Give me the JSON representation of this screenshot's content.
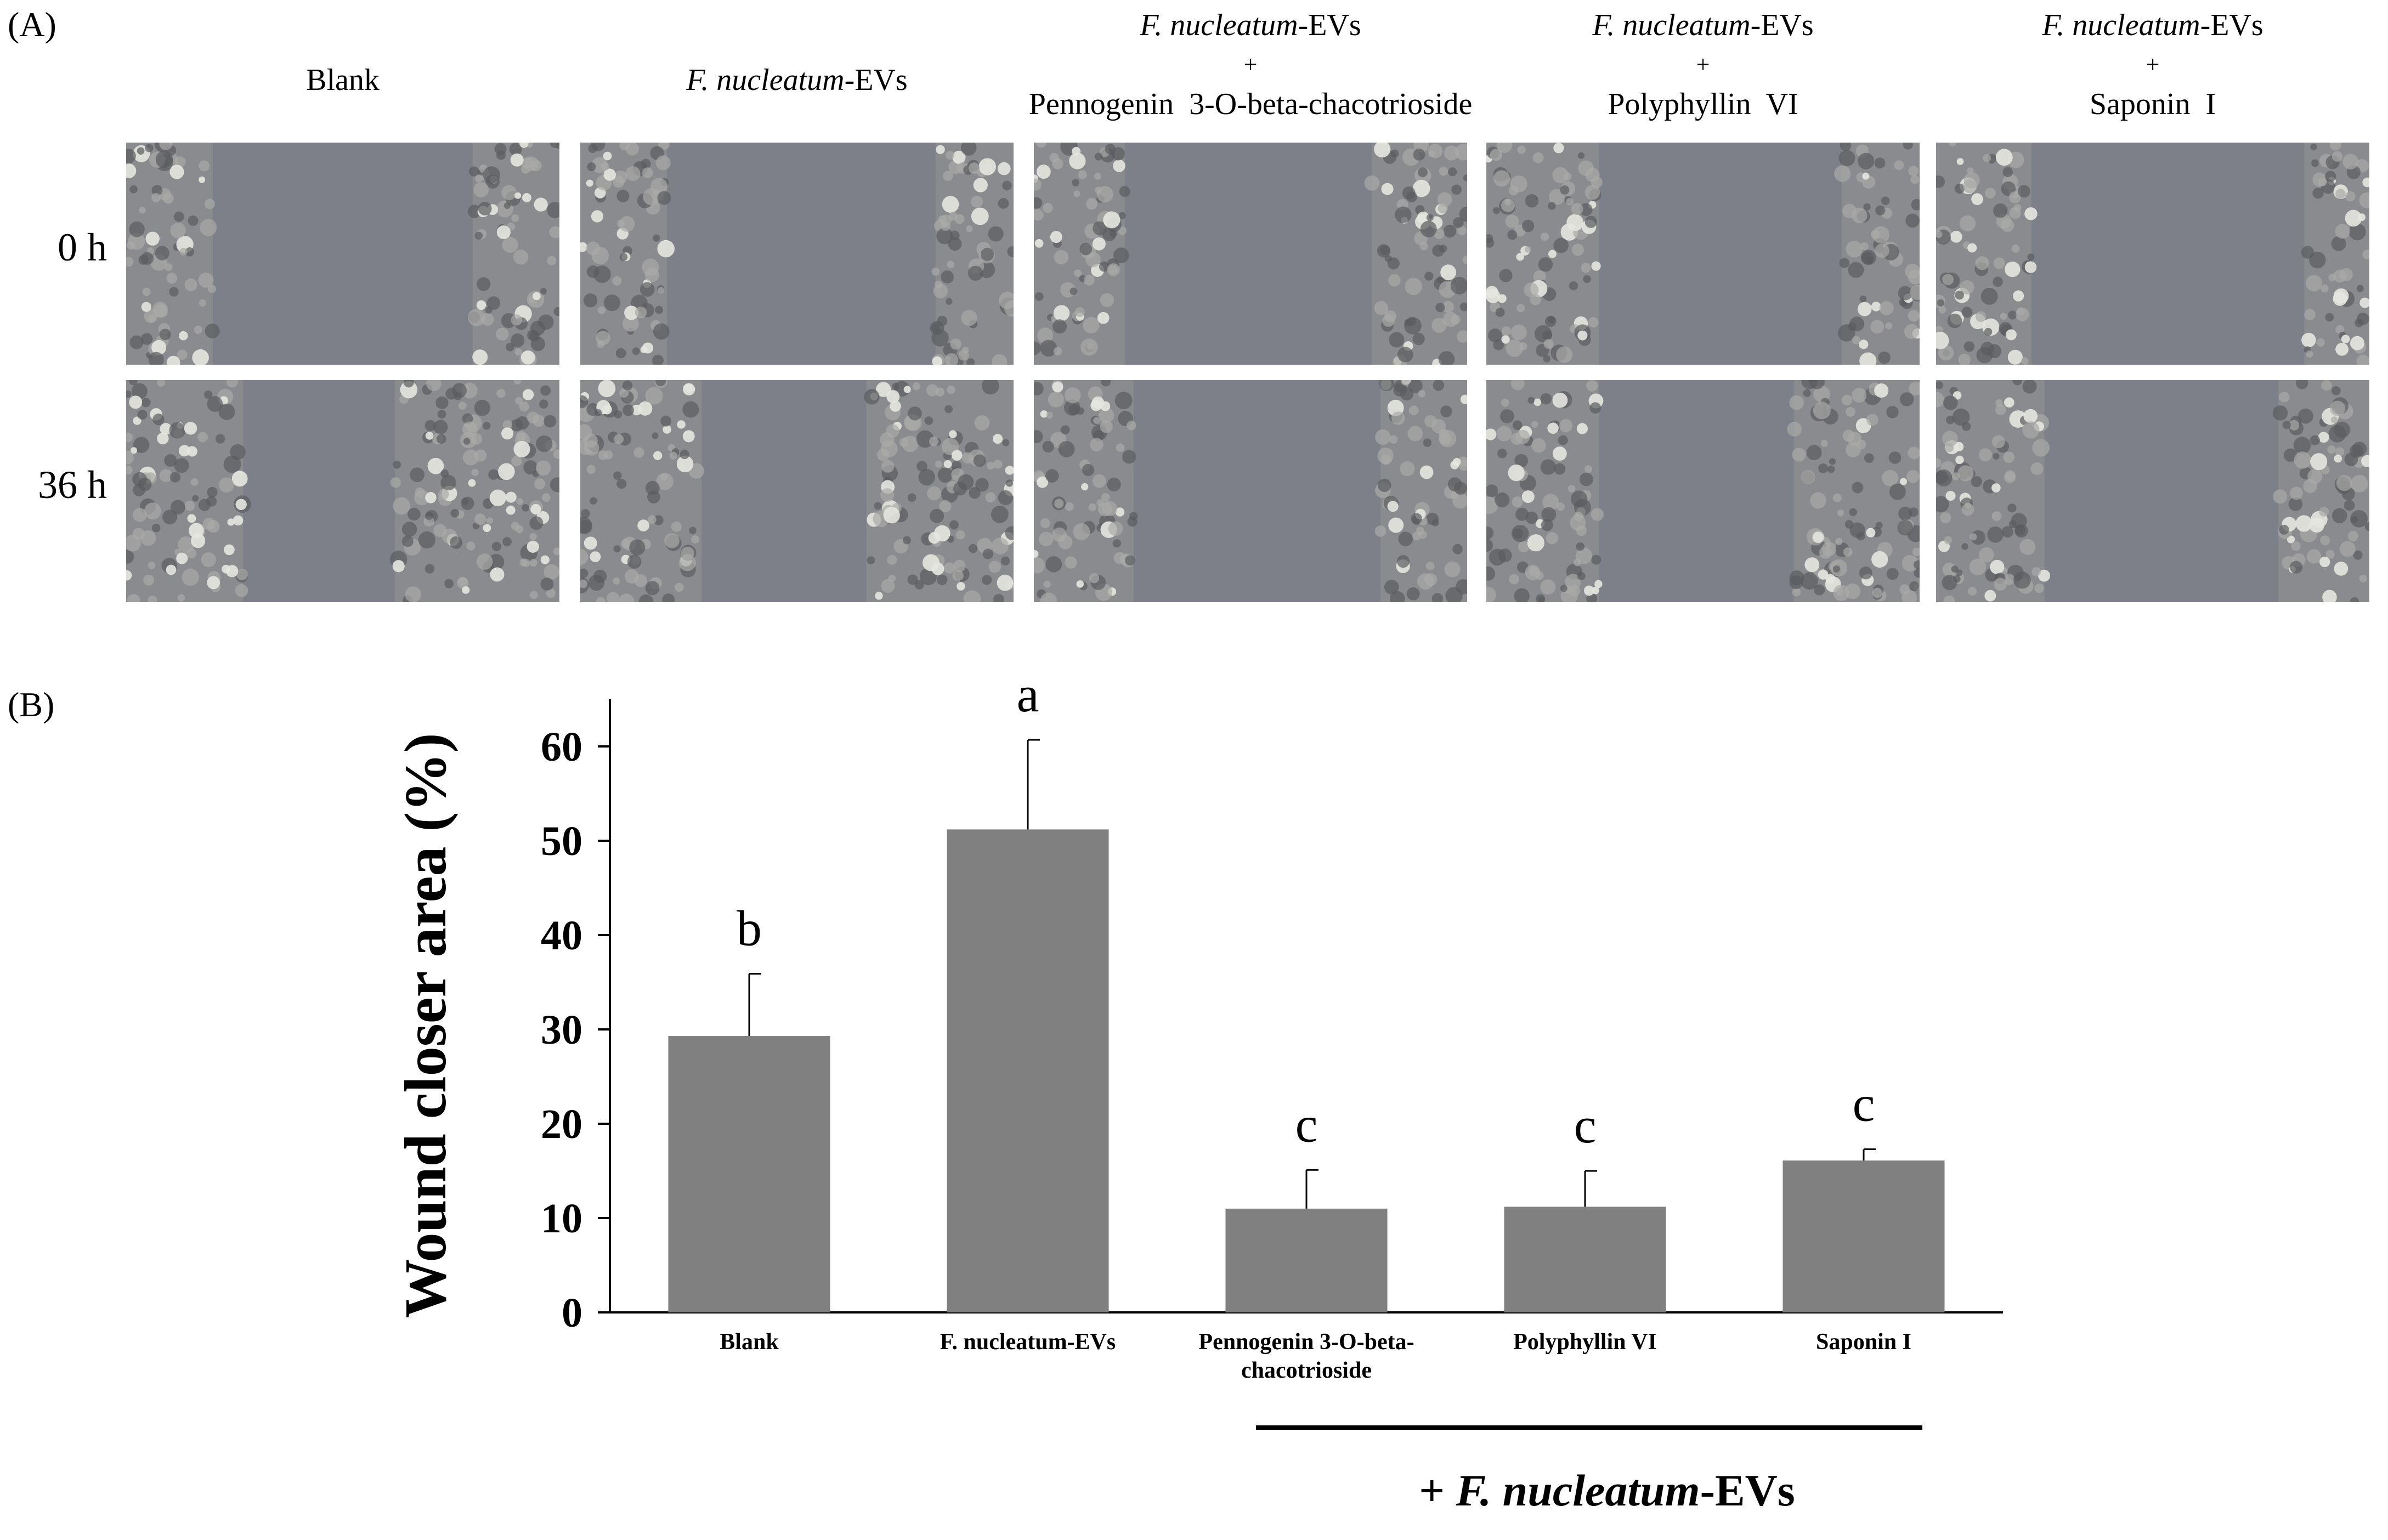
{
  "panel_a": {
    "label": "(A)",
    "columns": [
      {
        "prefix": "",
        "species": "",
        "suffix": "",
        "plus": "",
        "name": "Blank"
      },
      {
        "prefix": "",
        "species": "F. nucleatum",
        "suffix": "-EVs",
        "plus": "",
        "name": ""
      },
      {
        "prefix": "",
        "species": "F. nucleatum",
        "suffix": "-EVs",
        "plus": "+",
        "name": "Pennogenin  3-O-beta-chacotrioside"
      },
      {
        "prefix": "",
        "species": "F. nucleatum",
        "suffix": "-EVs",
        "plus": "+",
        "name": "Polyphyllin  VI"
      },
      {
        "prefix": "",
        "species": "F. nucleatum",
        "suffix": "-EVs",
        "plus": "+",
        "name": "Saponin  I"
      }
    ],
    "rows": [
      {
        "label": "0 h"
      },
      {
        "label": "36 h"
      }
    ]
  },
  "panel_b": {
    "label": "(B)",
    "treatment_group_label": {
      "plus": "+ ",
      "species": "F. nucleatum",
      "suffix": "-EVs"
    }
  },
  "chart_data": {
    "type": "bar",
    "title": "",
    "xlabel": "",
    "ylabel": "Wound closer area (%)",
    "ylim": [
      0,
      65
    ],
    "yticks": [
      0,
      10,
      20,
      30,
      40,
      50,
      60
    ],
    "categories": [
      "Blank",
      "F. nucleatum-EVs",
      "Pennogenin 3-O-beta-chacotrioside",
      "Polyphyllin VI",
      "Saponin I"
    ],
    "values": [
      29.3,
      51.2,
      11.0,
      11.2,
      16.1
    ],
    "errors": [
      6.6,
      9.5,
      4.1,
      3.8,
      1.2
    ],
    "significance": [
      "b",
      "a",
      "c",
      "c",
      "c"
    ],
    "bar_color": "#808080",
    "grid": false
  }
}
